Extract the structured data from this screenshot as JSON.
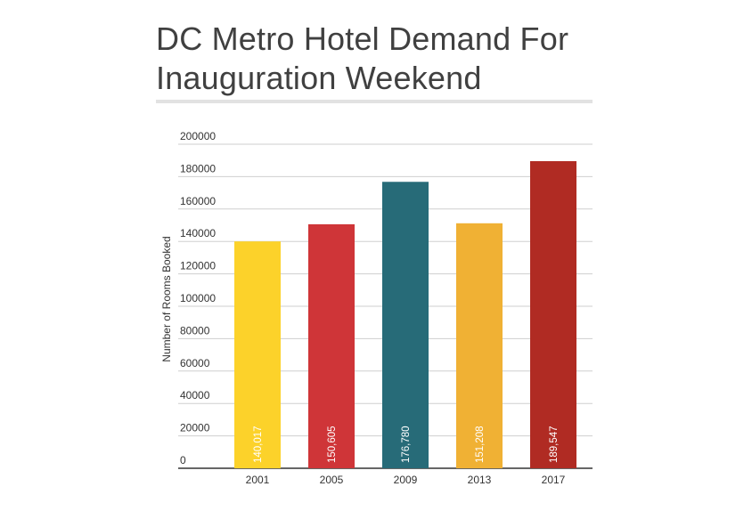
{
  "chart_data": {
    "type": "bar",
    "title": "DC Metro Hotel Demand For Inauguration Weekend",
    "title_lines": [
      "DC Metro Hotel Demand For",
      "Inauguration Weekend"
    ],
    "xlabel": "",
    "ylabel": "Number of Rooms Booked",
    "ylim": [
      0,
      200000
    ],
    "yticks": [
      0,
      20000,
      40000,
      60000,
      80000,
      100000,
      120000,
      140000,
      160000,
      180000,
      200000
    ],
    "categories": [
      "2001",
      "2005",
      "2009",
      "2013",
      "2017"
    ],
    "values": [
      140017,
      150605,
      176780,
      151208,
      189547
    ],
    "data_labels": [
      "140,017",
      "150,605",
      "176,780",
      "151,208",
      "189,547"
    ],
    "colors": [
      "#fcd22a",
      "#cf3538",
      "#276b78",
      "#f0b134",
      "#b02b23"
    ],
    "grid": true,
    "legend": "none"
  }
}
